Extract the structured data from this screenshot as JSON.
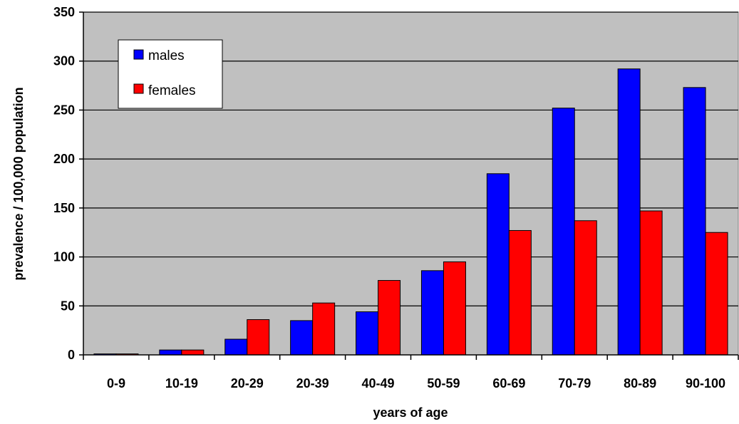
{
  "chart_data": {
    "type": "bar",
    "title": "",
    "xlabel": "years of age",
    "ylabel": "prevalence / 100,000 population",
    "categories": [
      "0-9",
      "10-19",
      "20-29",
      "20-39",
      "40-49",
      "50-59",
      "60-69",
      "70-79",
      "80-89",
      "90-100"
    ],
    "series": [
      {
        "name": "males",
        "color": "#0000ff",
        "values": [
          1,
          5,
          16,
          35,
          44,
          86,
          185,
          252,
          292,
          273
        ]
      },
      {
        "name": "females",
        "color": "#ff0000",
        "values": [
          1,
          5,
          36,
          53,
          76,
          95,
          127,
          137,
          147,
          125
        ]
      }
    ],
    "ylim": [
      0,
      350
    ],
    "yticks": [
      0,
      50,
      100,
      150,
      200,
      250,
      300,
      350
    ],
    "grid": true,
    "legend": "top-left",
    "plot_background": "#c0c0c0"
  }
}
